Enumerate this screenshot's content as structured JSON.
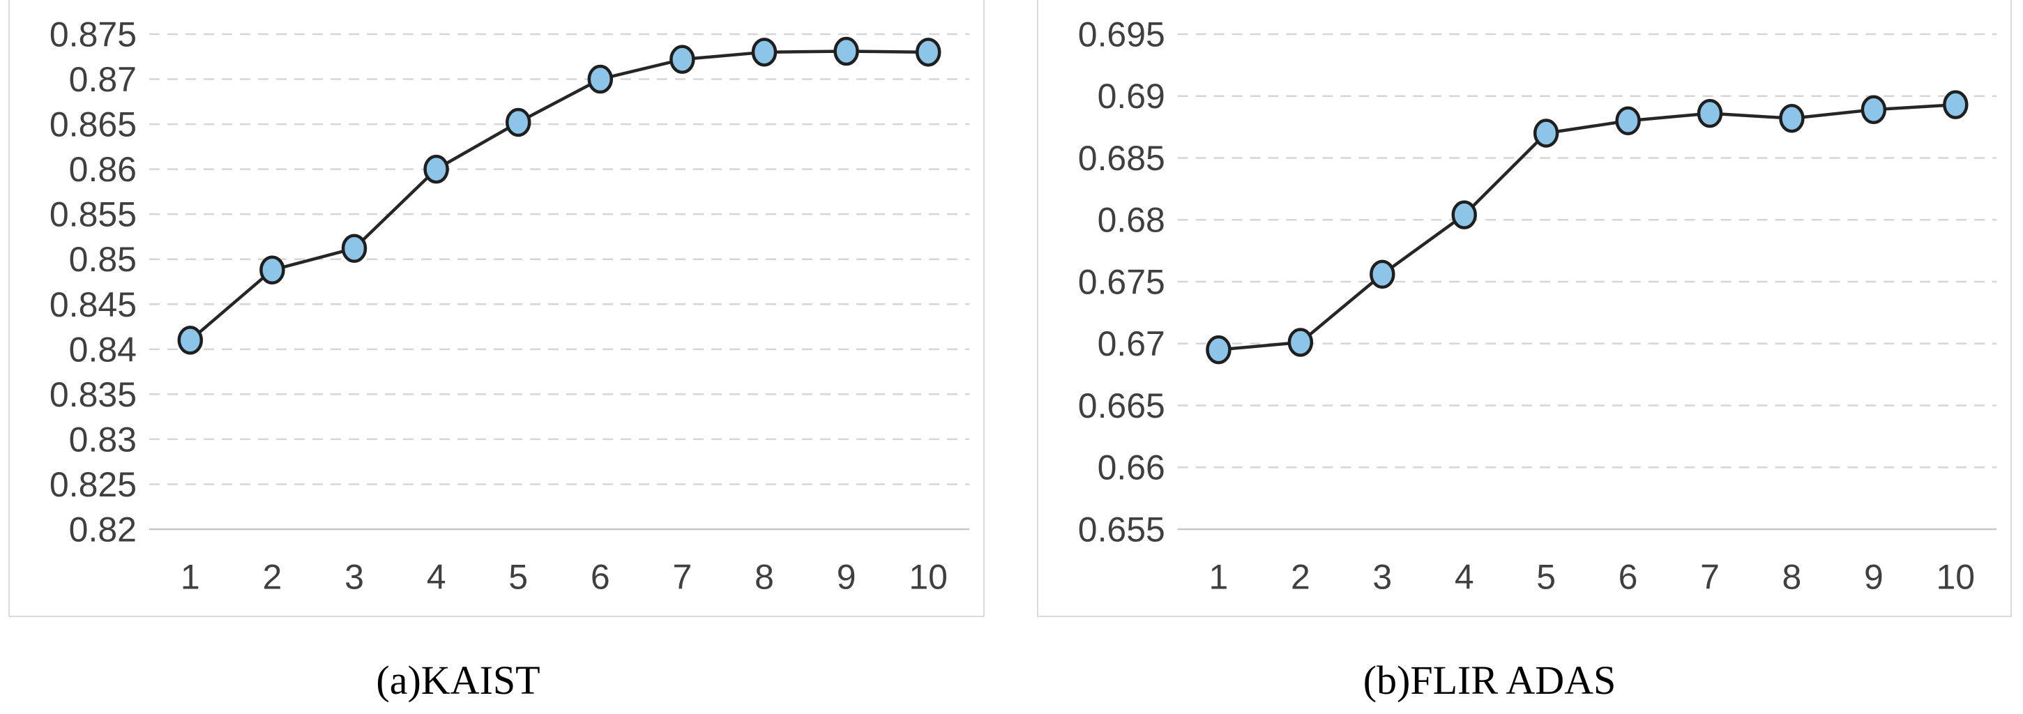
{
  "figure": {
    "background": "#ffffff",
    "panels": [
      {
        "caption": "(a)KAIST"
      },
      {
        "caption": "(b)FLIR ADAS"
      }
    ]
  },
  "style": {
    "line": "#262626",
    "marker_fill": "#8CC5E8",
    "marker_stroke": "#1F1F1F",
    "gridline": "#D6D6D6",
    "axis_line": "#C7C7C7",
    "panel_border": "#DADADA",
    "tick_label": "#3F3F3F",
    "caption_color": "#000000"
  },
  "chart_data": [
    {
      "id": "kaist",
      "type": "line",
      "title": "",
      "caption": "(a)KAIST",
      "xlabel": "",
      "ylabel": "",
      "legend": "none",
      "grid": "dashed-horizontal",
      "categories": [
        1,
        2,
        3,
        4,
        5,
        6,
        7,
        8,
        9,
        10
      ],
      "x_ticks": [
        "1",
        "2",
        "3",
        "4",
        "5",
        "6",
        "7",
        "8",
        "9",
        "10"
      ],
      "values": [
        0.841,
        0.8488,
        0.8512,
        0.86,
        0.8652,
        0.87,
        0.8722,
        0.873,
        0.8731,
        0.873
      ],
      "ylim": [
        0.82,
        0.875
      ],
      "y_tick_step": 0.005,
      "y_ticks": [
        "0.875",
        "0.87",
        "0.865",
        "0.86",
        "0.855",
        "0.85",
        "0.845",
        "0.84",
        "0.835",
        "0.83",
        "0.825",
        "0.82"
      ]
    },
    {
      "id": "flir-adas",
      "type": "line",
      "title": "",
      "caption": "(b)FLIR ADAS",
      "xlabel": "",
      "ylabel": "",
      "legend": "none",
      "grid": "dashed-horizontal",
      "categories": [
        1,
        2,
        3,
        4,
        5,
        6,
        7,
        8,
        9,
        10
      ],
      "x_ticks": [
        "1",
        "2",
        "3",
        "4",
        "5",
        "6",
        "7",
        "8",
        "9",
        "10"
      ],
      "values": [
        0.6695,
        0.6701,
        0.6756,
        0.6804,
        0.687,
        0.688,
        0.6886,
        0.6882,
        0.6889,
        0.6893
      ],
      "ylim": [
        0.655,
        0.695
      ],
      "y_tick_step": 0.005,
      "y_ticks": [
        "0.695",
        "0.69",
        "0.685",
        "0.68",
        "0.675",
        "0.67",
        "0.665",
        "0.66",
        "0.655"
      ]
    }
  ]
}
